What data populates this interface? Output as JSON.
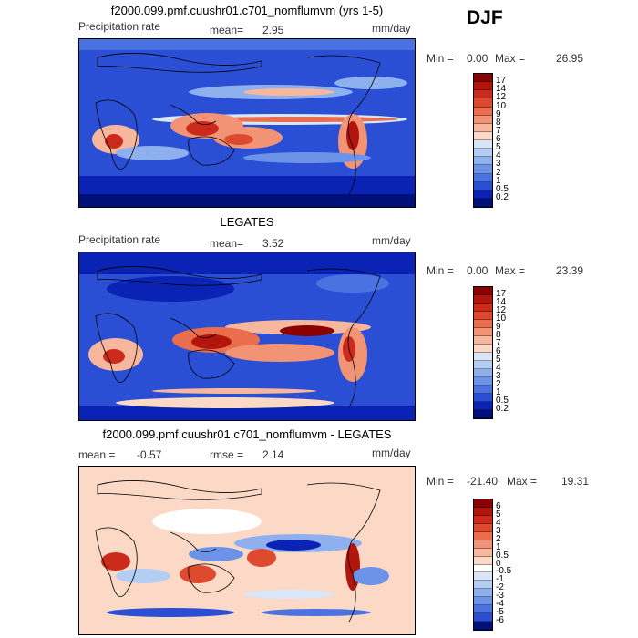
{
  "header": {
    "season": "DJF"
  },
  "panels": [
    {
      "title": "f2000.099.pmf.cuushr01.c701_nomflumvm (yrs 1-5)",
      "left_label": "Precipitation rate",
      "stat_label": "mean=",
      "stat_value": "2.95",
      "units": "mm/day",
      "minmax_label": "Min =",
      "min_value": "0.00",
      "max_label": "Max =",
      "max_value": "26.95"
    },
    {
      "title": "LEGATES",
      "left_label": "Precipitation rate",
      "stat_label": "mean=",
      "stat_value": "3.52",
      "units": "mm/day",
      "minmax_label": "Min =",
      "min_value": "0.00",
      "max_label": "Max =",
      "max_value": "23.39"
    },
    {
      "title": "f2000.099.pmf.cuushr01.c701_nomflumvm - LEGATES",
      "left_label": "mean =",
      "left_value": "-0.57",
      "stat_label": "rmse =",
      "stat_value": "2.14",
      "units": "mm/day",
      "minmax_label": "Min =",
      "min_value": "-21.40",
      "max_label": "Max =",
      "max_value": "19.31"
    }
  ],
  "chart_data": [
    {
      "type": "heatmap",
      "title": "f2000.099.pmf.cuushr01.c701_nomflumvm (yrs 1-5)",
      "variable": "Precipitation rate",
      "units": "mm/day",
      "mean": 2.95,
      "min": 0.0,
      "max": 26.95,
      "colorbar_levels": [
        "17",
        "14",
        "12",
        "10",
        "9",
        "8",
        "7",
        "6",
        "5",
        "4",
        "3",
        "2",
        "1",
        "0.5",
        "0.2"
      ],
      "colorbar_colors": [
        "#8b0000",
        "#b2150c",
        "#cc2a1a",
        "#dd4a2e",
        "#ea6e4e",
        "#f39375",
        "#f7b79c",
        "#fbd9c6",
        "#d8e6f7",
        "#b3cdf3",
        "#8fb0ee",
        "#6d93e8",
        "#4a72e0",
        "#2a4fd4",
        "#0a23b4",
        "#00107a"
      ],
      "projection": "global, Pacific-centered"
    },
    {
      "type": "heatmap",
      "title": "LEGATES",
      "variable": "Precipitation rate",
      "units": "mm/day",
      "mean": 3.52,
      "min": 0.0,
      "max": 23.39,
      "colorbar_levels": [
        "17",
        "14",
        "12",
        "10",
        "9",
        "8",
        "7",
        "6",
        "5",
        "4",
        "3",
        "2",
        "1",
        "0.5",
        "0.2"
      ],
      "colorbar_colors": [
        "#8b0000",
        "#b2150c",
        "#cc2a1a",
        "#dd4a2e",
        "#ea6e4e",
        "#f39375",
        "#f7b79c",
        "#fbd9c6",
        "#d8e6f7",
        "#b3cdf3",
        "#8fb0ee",
        "#6d93e8",
        "#4a72e0",
        "#2a4fd4",
        "#0a23b4",
        "#00107a"
      ],
      "projection": "global, Pacific-centered"
    },
    {
      "type": "heatmap",
      "title": "f2000.099.pmf.cuushr01.c701_nomflumvm - LEGATES",
      "units": "mm/day",
      "mean": -0.57,
      "rmse": 2.14,
      "min": -21.4,
      "max": 19.31,
      "colorbar_levels": [
        "6",
        "5",
        "4",
        "3",
        "2",
        "1",
        "0.5",
        "0",
        "-0.5",
        "-1",
        "-2",
        "-3",
        "-4",
        "-5",
        "-6"
      ],
      "colorbar_colors": [
        "#8b0000",
        "#b2150c",
        "#cc2a1a",
        "#dd4a2e",
        "#ea6e4e",
        "#f39375",
        "#f7b79c",
        "#fbd9c6",
        "#ffffff",
        "#d8e6f7",
        "#b3cdf3",
        "#8fb0ee",
        "#6d93e8",
        "#4a72e0",
        "#2a4fd4",
        "#00107a"
      ],
      "projection": "global, Pacific-centered"
    }
  ]
}
